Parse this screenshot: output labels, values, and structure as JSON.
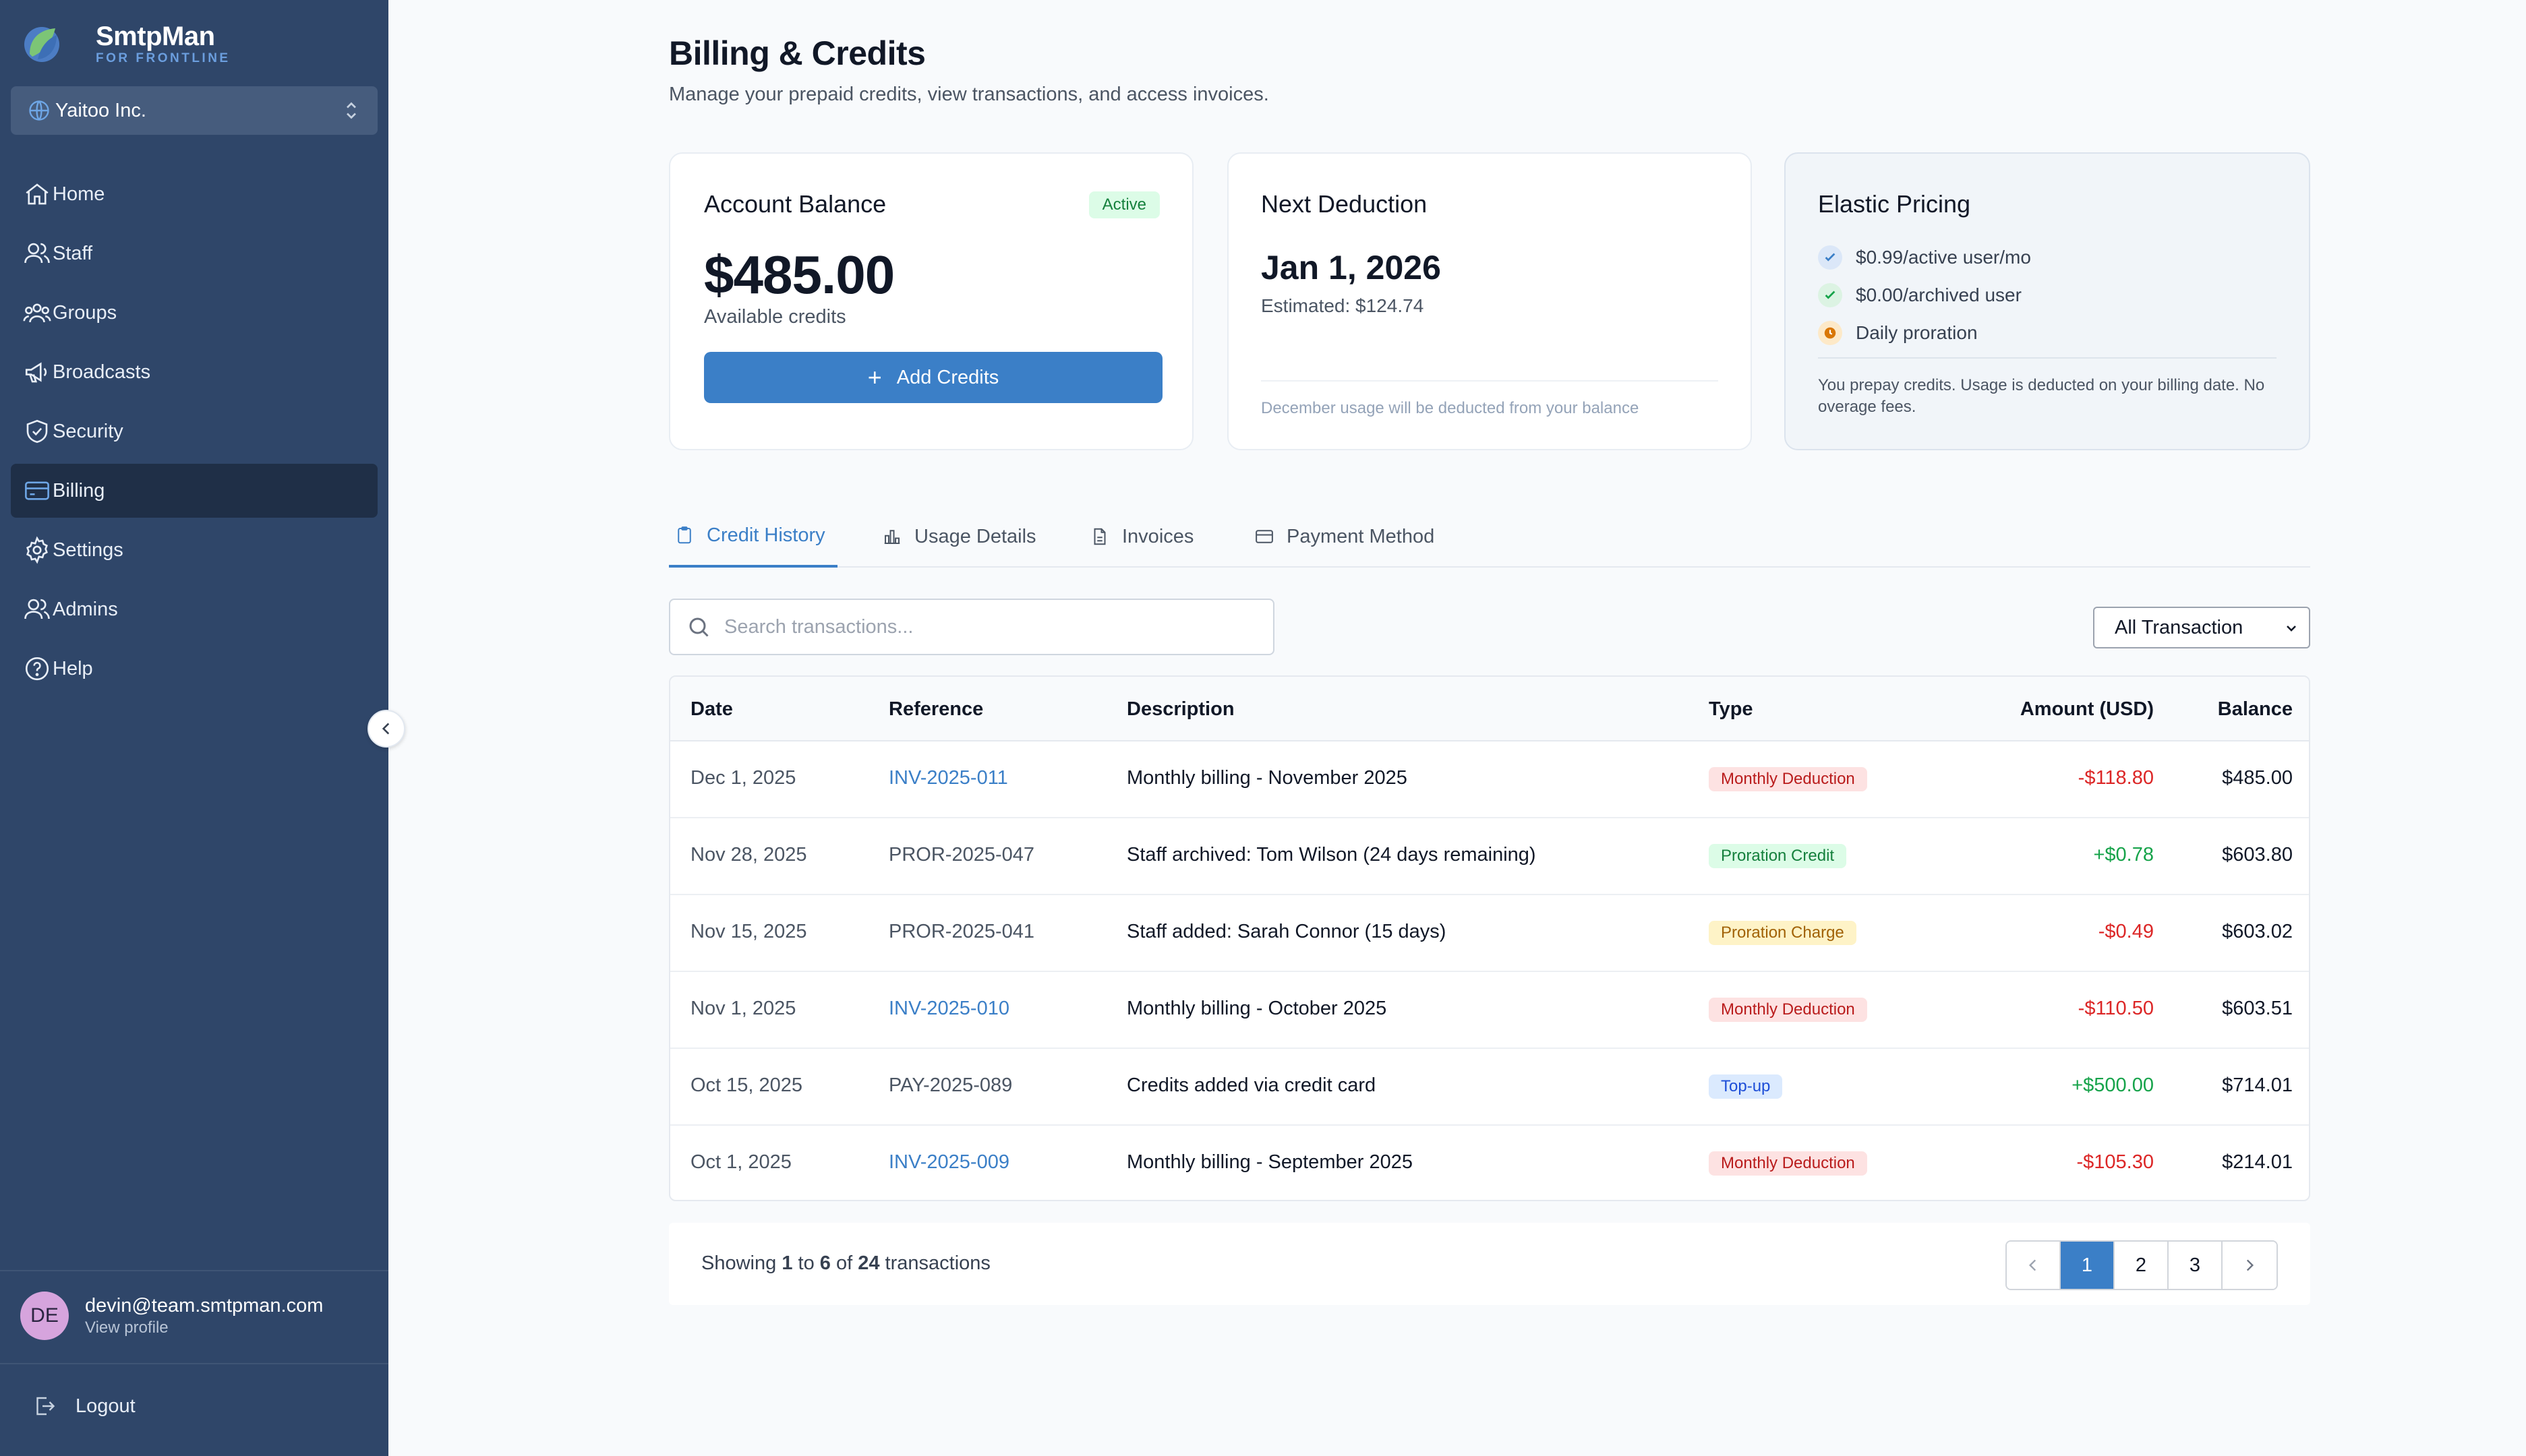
{
  "brand": {
    "name": "SmtpMan",
    "sub": "FOR FRONTLINE"
  },
  "org": {
    "name": "Yaitoo Inc."
  },
  "nav": [
    {
      "label": "Home"
    },
    {
      "label": "Staff"
    },
    {
      "label": "Groups"
    },
    {
      "label": "Broadcasts"
    },
    {
      "label": "Security"
    },
    {
      "label": "Billing"
    },
    {
      "label": "Settings"
    },
    {
      "label": "Admins"
    },
    {
      "label": "Help"
    }
  ],
  "profile": {
    "initials": "DE",
    "email": "devin@team.smtpman.com",
    "link": "View profile"
  },
  "logout": "Logout",
  "page": {
    "title": "Billing & Credits",
    "subtitle": "Manage your prepaid credits, view transactions, and access invoices."
  },
  "balance_card": {
    "title": "Account Balance",
    "badge": "Active",
    "amount": "$485.00",
    "caption": "Available credits",
    "button": "Add Credits"
  },
  "deduction_card": {
    "title": "Next Deduction",
    "date": "Jan 1, 2026",
    "estimate": "Estimated: $124.74",
    "note": "December usage will be deducted from your balance"
  },
  "pricing_card": {
    "title": "Elastic Pricing",
    "items": [
      "$0.99/active user/mo",
      "$0.00/archived user",
      "Daily proration"
    ],
    "note": "You prepay credits. Usage is deducted on your billing date. No overage fees."
  },
  "tabs": [
    "Credit History",
    "Usage Details",
    "Invoices",
    "Payment Method"
  ],
  "search": {
    "placeholder": "Search transactions..."
  },
  "filter": {
    "selected": "All Transaction"
  },
  "table": {
    "headers": [
      "Date",
      "Reference",
      "Description",
      "Type",
      "Amount (USD)",
      "Balance"
    ],
    "rows": [
      {
        "date": "Dec 1, 2025",
        "ref": "INV-2025-011",
        "desc": "Monthly billing - November 2025",
        "type": "Monthly Deduction",
        "amount": "-$118.80",
        "balance": "$485.00"
      },
      {
        "date": "Nov 28, 2025",
        "ref": "PROR-2025-047",
        "desc": "Staff archived: Tom Wilson (24 days remaining)",
        "type": "Proration Credit",
        "amount": "+$0.78",
        "balance": "$603.80"
      },
      {
        "date": "Nov 15, 2025",
        "ref": "PROR-2025-041",
        "desc": "Staff added: Sarah Connor (15 days)",
        "type": "Proration Charge",
        "amount": "-$0.49",
        "balance": "$603.02"
      },
      {
        "date": "Nov 1, 2025",
        "ref": "INV-2025-010",
        "desc": "Monthly billing - October 2025",
        "type": "Monthly Deduction",
        "amount": "-$110.50",
        "balance": "$603.51"
      },
      {
        "date": "Oct 15, 2025",
        "ref": "PAY-2025-089",
        "desc": "Credits added via credit card",
        "type": "Top-up",
        "amount": "+$500.00",
        "balance": "$714.01"
      },
      {
        "date": "Oct 1, 2025",
        "ref": "INV-2025-009",
        "desc": "Monthly billing - September 2025",
        "type": "Monthly Deduction",
        "amount": "-$105.30",
        "balance": "$214.01"
      }
    ]
  },
  "pagination": {
    "showing": "Showing",
    "from": "1",
    "to_word": "to",
    "to": "6",
    "of_word": "of",
    "total": "24",
    "suffix": "transactions",
    "pages": [
      "1",
      "2",
      "3"
    ]
  }
}
